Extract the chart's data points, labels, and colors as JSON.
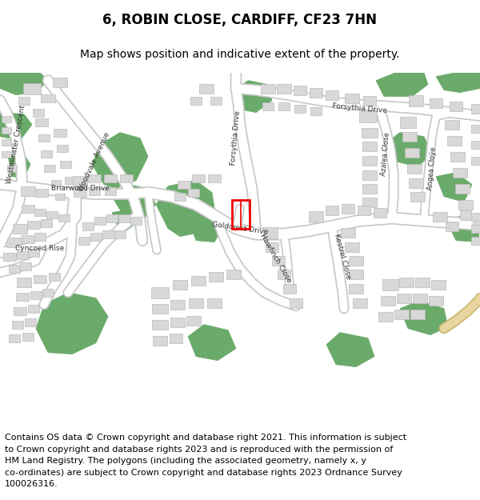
{
  "title_line1": "6, ROBIN CLOSE, CARDIFF, CF23 7HN",
  "title_line2": "Map shows position and indicative extent of the property.",
  "title_fontsize": 12,
  "subtitle_fontsize": 10,
  "copyright_text": "Contains OS data © Crown copyright and database right 2021. This information is subject\nto Crown copyright and database rights 2023 and is reproduced with the permission of\nHM Land Registry. The polygons (including the associated geometry, namely x, y\nco-ordinates) are subject to Crown copyright and database rights 2023 Ordnance Survey\n100026316.",
  "copyright_fontsize": 8.0,
  "map_bg": "#efefef",
  "road_fill": "#f5f5f5",
  "road_edge": "#cccccc",
  "building_color": "#d8d8d8",
  "building_outline": "#bbbbbb",
  "green_color": "#6aaa6a",
  "green_light": "#8fc88f",
  "red_box_color": "#ee0000",
  "text_color": "#000000",
  "label_color": "#333333",
  "border_color": "#aaaaaa",
  "tan_road": "#e8d8a0",
  "fig_width": 6.0,
  "fig_height": 6.25
}
